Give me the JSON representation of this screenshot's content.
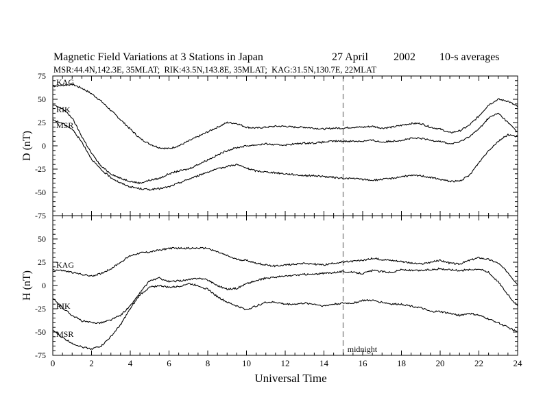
{
  "header": {
    "title": "Magnetic Field Variations at 3 Stations in Japan",
    "date": "27 April",
    "year": "2002",
    "averaging": "10-s averages",
    "stations_line": "MSR:44.4N,142.3E, 35MLAT;  RIK:43.5N,143.8E, 35MLAT;  KAG:31.5N,130.7E, 22MLAT"
  },
  "chart_data": [
    {
      "type": "line",
      "panel": "D",
      "ylabel": "D (nT)",
      "xlabel": "",
      "xlim": [
        0,
        24
      ],
      "ylim": [
        -75,
        75
      ],
      "yticks": [
        75,
        50,
        25,
        0,
        -25,
        -50,
        -75
      ],
      "xticks": [],
      "annotation": "",
      "series": [
        {
          "name": "KAG",
          "x": [
            0,
            0.5,
            1,
            1.5,
            2,
            2.5,
            3,
            3.5,
            4,
            4.5,
            5,
            5.5,
            6,
            6.5,
            7,
            7.5,
            8,
            8.5,
            9,
            9.5,
            10,
            10.5,
            11,
            11.5,
            12,
            12.5,
            13,
            13.5,
            14,
            14.5,
            15,
            15.5,
            16,
            16.5,
            17,
            17.5,
            18,
            18.5,
            19,
            19.5,
            20,
            20.5,
            21,
            21.5,
            22,
            22.5,
            23,
            23.5,
            24
          ],
          "y": [
            64,
            65,
            66,
            62,
            56,
            48,
            38,
            28,
            18,
            8,
            2,
            -2,
            -3,
            0,
            5,
            10,
            15,
            20,
            25,
            24,
            20,
            19,
            20,
            21,
            21,
            20,
            20,
            19,
            18,
            19,
            19,
            20,
            20,
            21,
            19,
            20,
            22,
            24,
            24,
            20,
            18,
            14,
            16,
            22,
            32,
            44,
            50,
            48,
            42
          ]
        },
        {
          "name": "RIK",
          "x": [
            0,
            0.5,
            1,
            1.5,
            2,
            2.5,
            3,
            3.5,
            4,
            4.5,
            5,
            5.5,
            6,
            6.5,
            7,
            7.5,
            8,
            8.5,
            9,
            9.5,
            10,
            10.5,
            11,
            11.5,
            12,
            12.5,
            13,
            13.5,
            14,
            14.5,
            15,
            15.5,
            16,
            16.5,
            17,
            17.5,
            18,
            18.5,
            19,
            19.5,
            20,
            20.5,
            21,
            21.5,
            22,
            22.5,
            23,
            23.5,
            24
          ],
          "y": [
            44,
            40,
            30,
            10,
            -8,
            -22,
            -30,
            -35,
            -38,
            -40,
            -37,
            -35,
            -30,
            -27,
            -25,
            -20,
            -15,
            -10,
            -5,
            -2,
            0,
            1,
            2,
            1,
            1,
            2,
            3,
            3,
            4,
            5,
            5,
            5,
            5,
            6,
            4,
            5,
            6,
            8,
            8,
            6,
            5,
            2,
            4,
            10,
            18,
            30,
            35,
            25,
            15
          ]
        },
        {
          "name": "MSR",
          "x": [
            0,
            0.5,
            1,
            1.5,
            2,
            2.5,
            3,
            3.5,
            4,
            4.5,
            5,
            5.5,
            6,
            6.5,
            7,
            7.5,
            8,
            8.5,
            9,
            9.5,
            10,
            10.5,
            11,
            11.5,
            12,
            12.5,
            13,
            13.5,
            14,
            14.5,
            15,
            15.5,
            16,
            16.5,
            17,
            17.5,
            18,
            18.5,
            19,
            19.5,
            20,
            20.5,
            21,
            21.5,
            22,
            22.5,
            23,
            23.5,
            24
          ],
          "y": [
            28,
            24,
            18,
            4,
            -14,
            -26,
            -34,
            -40,
            -44,
            -46,
            -47,
            -46,
            -44,
            -40,
            -36,
            -32,
            -28,
            -25,
            -22,
            -20,
            -24,
            -27,
            -28,
            -29,
            -30,
            -31,
            -32,
            -32,
            -33,
            -34,
            -35,
            -35,
            -36,
            -37,
            -36,
            -35,
            -33,
            -32,
            -32,
            -34,
            -36,
            -38,
            -38,
            -32,
            -18,
            -5,
            5,
            12,
            10
          ]
        }
      ]
    },
    {
      "type": "line",
      "panel": "H",
      "ylabel": "H (nT)",
      "xlabel": "Universal Time",
      "xlim": [
        0,
        24
      ],
      "ylim": [
        -75,
        75
      ],
      "yticks": [
        50,
        25,
        0,
        -25,
        -50,
        -75
      ],
      "xticks": [
        0,
        2,
        4,
        6,
        8,
        10,
        12,
        14,
        16,
        18,
        20,
        22,
        24
      ],
      "annotation": "midnight",
      "series": [
        {
          "name": "KAG",
          "x": [
            0,
            0.5,
            1,
            1.5,
            2,
            2.5,
            3,
            3.5,
            4,
            4.5,
            5,
            5.5,
            6,
            6.5,
            7,
            7.5,
            8,
            8.5,
            9,
            9.5,
            10,
            10.5,
            11,
            11.5,
            12,
            12.5,
            13,
            13.5,
            14,
            14.5,
            15,
            15.5,
            16,
            16.5,
            17,
            17.5,
            18,
            18.5,
            19,
            19.5,
            20,
            20.5,
            21,
            21.5,
            22,
            22.5,
            23,
            23.5,
            24
          ],
          "y": [
            17,
            16,
            14,
            12,
            10,
            13,
            18,
            25,
            32,
            35,
            36,
            38,
            40,
            40,
            40,
            40,
            40,
            36,
            32,
            28,
            27,
            24,
            22,
            21,
            22,
            23,
            24,
            23,
            22,
            24,
            25,
            26,
            27,
            29,
            28,
            27,
            26,
            24,
            23,
            25,
            27,
            24,
            23,
            27,
            30,
            28,
            24,
            14,
            1
          ]
        },
        {
          "name": "RIK",
          "x": [
            0,
            0.5,
            1,
            1.5,
            2,
            2.5,
            3,
            3.5,
            4,
            4.5,
            5,
            5.5,
            6,
            6.5,
            7,
            7.5,
            8,
            8.5,
            9,
            9.5,
            10,
            10.5,
            11,
            11.5,
            12,
            12.5,
            13,
            13.5,
            14,
            14.5,
            15,
            15.5,
            16,
            16.5,
            17,
            17.5,
            18,
            18.5,
            19,
            19.5,
            20,
            20.5,
            21,
            21.5,
            22,
            22.5,
            23,
            23.5,
            24
          ],
          "y": [
            -14,
            -24,
            -32,
            -38,
            -40,
            -40,
            -37,
            -32,
            -22,
            -8,
            5,
            8,
            4,
            5,
            6,
            8,
            6,
            0,
            -4,
            -3,
            2,
            5,
            8,
            9,
            10,
            11,
            12,
            12,
            13,
            14,
            15,
            14,
            13,
            16,
            15,
            14,
            17,
            16,
            16,
            17,
            18,
            17,
            16,
            17,
            18,
            14,
            4,
            -10,
            -22
          ]
        },
        {
          "name": "MSR",
          "x": [
            0,
            0.5,
            1,
            1.5,
            2,
            2.5,
            3,
            3.5,
            4,
            4.5,
            5,
            5.5,
            6,
            6.5,
            7,
            7.5,
            8,
            8.5,
            9,
            9.5,
            10,
            10.5,
            11,
            11.5,
            12,
            12.5,
            13,
            13.5,
            14,
            14.5,
            15,
            15.5,
            16,
            16.5,
            17,
            17.5,
            18,
            18.5,
            19,
            19.5,
            20,
            20.5,
            21,
            21.5,
            22,
            22.5,
            23,
            23.5,
            24
          ],
          "y": [
            -48,
            -56,
            -62,
            -66,
            -68,
            -65,
            -55,
            -42,
            -25,
            -10,
            -2,
            0,
            -2,
            -1,
            2,
            0,
            -4,
            -12,
            -18,
            -22,
            -26,
            -22,
            -18,
            -18,
            -20,
            -20,
            -19,
            -20,
            -22,
            -20,
            -19,
            -19,
            -16,
            -16,
            -18,
            -20,
            -20,
            -22,
            -24,
            -28,
            -28,
            -30,
            -32,
            -30,
            -32,
            -36,
            -40,
            -45,
            -50
          ]
        }
      ]
    }
  ]
}
